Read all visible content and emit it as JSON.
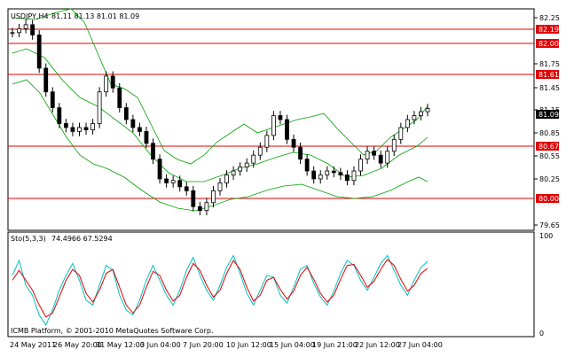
{
  "header": {
    "symbol_timeframe": "USDJPY,H4",
    "ohlc": "81.11 81.13 81.01 81.09"
  },
  "indicator": {
    "label": "Sto(5,3,3)",
    "values": "74.4966 67.5294",
    "scale_top": "100",
    "scale_bottom": "0"
  },
  "footer": {
    "copyright": "ICMB Platform, © 2001-2010 MetaQuotes Software Corp."
  },
  "price_axis": {
    "ticks": [
      "82.25",
      "81.75",
      "81.45",
      "81.15",
      "80.85",
      "80.55",
      "80.25",
      "79.65"
    ],
    "current_price": "81.09"
  },
  "time_axis": {
    "ticks": [
      "24 May 2011",
      "26 May 20:00",
      "31 May 12:00",
      "3 Jun 04:00",
      "7 Jun 20:00",
      "10 Jun 12:00",
      "15 Jun 04:00",
      "19 Jun 21:00",
      "22 Jun 12:00",
      "27 Jun 04:00"
    ]
  },
  "levels": [
    {
      "label": "82.19"
    },
    {
      "label": "82.00"
    },
    {
      "label": "81.61"
    },
    {
      "label": "80.67"
    },
    {
      "label": "80.00"
    }
  ],
  "colors": {
    "background": "#ffffff",
    "candle": "#000000",
    "bands": "#00a000",
    "level_line": "#e00000",
    "stoch_main": "#00c0c0",
    "stoch_signal": "#e00000"
  },
  "chart_data": {
    "type": "candlestick",
    "ylim": [
      79.55,
      82.35
    ],
    "close_series": [
      82.05,
      82.1,
      82.15,
      82.02,
      81.6,
      81.3,
      81.1,
      80.9,
      80.85,
      80.8,
      80.85,
      80.82,
      80.9,
      81.3,
      81.5,
      81.35,
      81.1,
      80.95,
      80.85,
      80.8,
      80.65,
      80.45,
      80.2,
      80.15,
      80.18,
      80.1,
      80.05,
      79.85,
      79.8,
      79.9,
      80.05,
      80.15,
      80.25,
      80.3,
      80.35,
      80.4,
      80.5,
      80.6,
      80.75,
      81.0,
      80.95,
      80.7,
      80.6,
      80.45,
      80.3,
      80.2,
      80.25,
      80.3,
      80.28,
      80.25,
      80.18,
      80.3,
      80.45,
      80.55,
      80.5,
      80.4,
      80.55,
      80.7,
      80.85,
      80.95,
      81.0,
      81.05,
      81.09
    ],
    "stochastic": {
      "main": [
        60,
        75,
        50,
        40,
        20,
        10,
        25,
        45,
        60,
        72,
        55,
        35,
        30,
        50,
        70,
        65,
        40,
        25,
        20,
        35,
        55,
        70,
        55,
        40,
        30,
        45,
        65,
        78,
        60,
        45,
        35,
        50,
        68,
        80,
        62,
        42,
        30,
        45,
        60,
        58,
        40,
        32,
        48,
        66,
        70,
        52,
        38,
        30,
        44,
        62,
        75,
        70,
        55,
        45,
        58,
        72,
        80,
        65,
        50,
        40,
        55,
        68,
        74
      ],
      "signal": [
        55,
        65,
        55,
        45,
        30,
        18,
        22,
        38,
        55,
        66,
        60,
        42,
        33,
        45,
        62,
        66,
        48,
        30,
        22,
        30,
        48,
        64,
        60,
        45,
        34,
        40,
        58,
        72,
        65,
        50,
        38,
        45,
        62,
        75,
        66,
        48,
        34,
        40,
        55,
        58,
        46,
        36,
        44,
        60,
        68,
        56,
        42,
        33,
        40,
        56,
        70,
        71,
        60,
        48,
        54,
        66,
        76,
        70,
        56,
        44,
        50,
        62,
        67
      ]
    }
  }
}
